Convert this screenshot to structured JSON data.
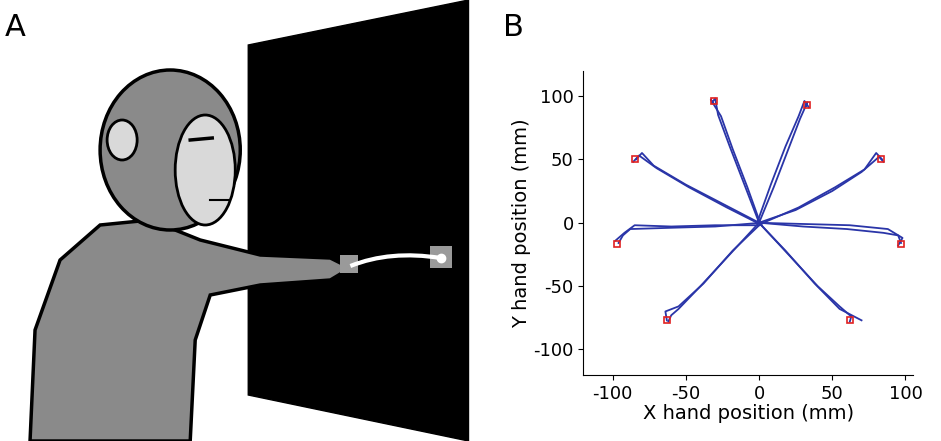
{
  "panel_labels": [
    "A",
    "B"
  ],
  "chart_data": {
    "type": "line",
    "xlabel": "X hand position (mm)",
    "ylabel": "Y hand position (mm)",
    "xlim": [
      -120,
      105
    ],
    "ylim": [
      -120,
      120
    ],
    "xticks": [
      -100,
      -50,
      0,
      50,
      100
    ],
    "yticks": [
      -100,
      -50,
      0,
      50,
      100
    ],
    "grid": false,
    "series": [
      {
        "type": "line",
        "color": "#2a35a8",
        "line_style": "solid",
        "x": [
          2,
          -30,
          -60,
          -88,
          -93,
          -96
        ],
        "values": [
          0,
          -3,
          -4,
          -5,
          -10,
          -16
        ]
      },
      {
        "type": "line",
        "color": "#2a35a8",
        "line_style": "solid",
        "x": [
          0,
          -30,
          -60,
          -85,
          -92,
          -98
        ],
        "values": [
          -2,
          -2,
          -3,
          -2,
          -8,
          -14
        ]
      },
      {
        "type": "line",
        "color": "#2a35a8",
        "line_style": "solid",
        "x": [
          0,
          -25,
          -50,
          -72,
          -80,
          -84
        ],
        "values": [
          0,
          15,
          30,
          45,
          55,
          50
        ]
      },
      {
        "type": "line",
        "color": "#2a35a8",
        "line_style": "solid",
        "x": [
          2,
          -22,
          -48,
          -70,
          -82,
          -86
        ],
        "values": [
          -2,
          12,
          28,
          43,
          53,
          48
        ]
      },
      {
        "type": "line",
        "color": "#2a35a8",
        "line_style": "solid",
        "x": [
          0,
          -10,
          -20,
          -28,
          -30,
          -32
        ],
        "values": [
          0,
          30,
          60,
          85,
          98,
          95
        ]
      },
      {
        "type": "line",
        "color": "#2a35a8",
        "line_style": "solid",
        "x": [
          1,
          -8,
          -18,
          -26,
          -33,
          -31
        ],
        "values": [
          -1,
          28,
          58,
          84,
          97,
          94
        ]
      },
      {
        "type": "line",
        "color": "#2a35a8",
        "line_style": "solid",
        "x": [
          0,
          10,
          20,
          28,
          33,
          32
        ],
        "values": [
          0,
          28,
          58,
          82,
          95,
          92
        ]
      },
      {
        "type": "line",
        "color": "#2a35a8",
        "line_style": "solid",
        "x": [
          -1,
          8,
          18,
          27,
          31,
          34
        ],
        "values": [
          1,
          30,
          60,
          84,
          96,
          91
        ]
      },
      {
        "type": "line",
        "color": "#2a35a8",
        "line_style": "solid",
        "x": [
          0,
          25,
          50,
          70,
          82,
          85
        ],
        "values": [
          0,
          10,
          25,
          40,
          52,
          48
        ]
      },
      {
        "type": "line",
        "color": "#2a35a8",
        "line_style": "solid",
        "x": [
          1,
          27,
          52,
          72,
          80,
          84
        ],
        "values": [
          -1,
          12,
          28,
          42,
          55,
          50
        ]
      },
      {
        "type": "line",
        "color": "#2a35a8",
        "line_style": "solid",
        "x": [
          0,
          30,
          60,
          85,
          95,
          97
        ],
        "values": [
          0,
          -3,
          -5,
          -8,
          -10,
          -16
        ]
      },
      {
        "type": "line",
        "color": "#2a35a8",
        "line_style": "solid",
        "x": [
          -2,
          30,
          62,
          88,
          98,
          95
        ],
        "values": [
          0,
          -1,
          -2,
          -5,
          -12,
          -18
        ]
      },
      {
        "type": "line",
        "color": "#2a35a8",
        "line_style": "solid",
        "x": [
          0,
          -20,
          -40,
          -55,
          -60,
          -62
        ],
        "values": [
          0,
          -25,
          -50,
          -68,
          -73,
          -78
        ]
      },
      {
        "type": "line",
        "color": "#2a35a8",
        "line_style": "solid",
        "x": [
          1,
          -18,
          -38,
          -55,
          -64,
          -63
        ],
        "values": [
          -1,
          -22,
          -48,
          -66,
          -70,
          -77
        ]
      },
      {
        "type": "line",
        "color": "#2a35a8",
        "line_style": "solid",
        "x": [
          0,
          20,
          40,
          55,
          63,
          62
        ],
        "values": [
          0,
          -25,
          -50,
          -66,
          -74,
          -78
        ]
      },
      {
        "type": "line",
        "color": "#2a35a8",
        "line_style": "solid",
        "x": [
          -1,
          18,
          38,
          55,
          65,
          70
        ],
        "values": [
          1,
          -22,
          -48,
          -68,
          -74,
          -77
        ]
      },
      {
        "type": "scatter",
        "color": "#e02020",
        "marker": "square",
        "x": [
          -97,
          -85,
          -31,
          33,
          83,
          97,
          -63,
          62
        ],
        "values": [
          -17,
          50,
          96,
          93,
          50,
          -17,
          -77,
          -77
        ]
      }
    ]
  }
}
